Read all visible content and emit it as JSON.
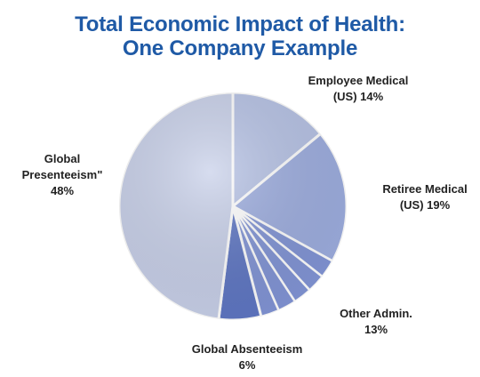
{
  "chart_data": {
    "type": "pie",
    "title_lines": [
      "Total Economic Impact of Health:",
      "One Company Example"
    ],
    "slices": [
      {
        "label_lines": [
          "Employee Medical",
          "(US) 14%"
        ],
        "value": 14
      },
      {
        "label_lines": [
          "Retiree Medical",
          "(US) 19%"
        ],
        "value": 19
      },
      {
        "label_lines": [
          "Other Admin.",
          "13%"
        ],
        "value": 13
      },
      {
        "label_lines": [
          "Global Absenteeism",
          "6%"
        ],
        "value": 6
      },
      {
        "label_lines": [
          "Global",
          "Presenteeism\"",
          "48%"
        ],
        "value": 48
      }
    ],
    "colors": {
      "presenteeism": "#c9d1ea",
      "employee_medical": "#b7c3e6",
      "retiree_medical": "#9eaee0",
      "other_admin": "#8295d6",
      "absenteeism": "#5f77c4",
      "title": "#1f5aa6"
    }
  }
}
